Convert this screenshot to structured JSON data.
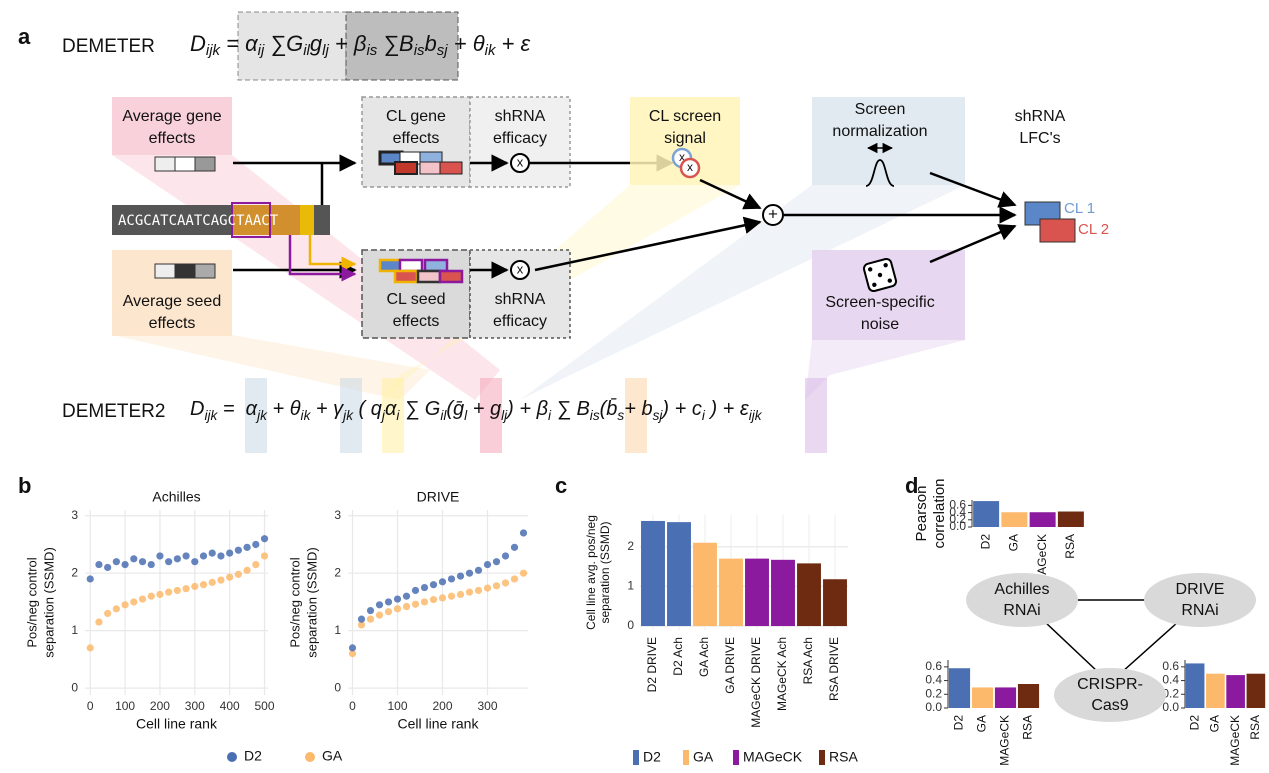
{
  "panel_labels": [
    "a",
    "b",
    "c",
    "d"
  ],
  "panel_a": {
    "demeter": {
      "name": "DEMETER",
      "formula": [
        [
          "D",
          "ijk"
        ],
        " = ",
        [
          "α",
          "ij"
        ],
        " ∑",
        [
          "G",
          "il"
        ],
        [
          "g",
          "lj"
        ],
        " + ",
        [
          "β",
          "is"
        ],
        " ∑",
        [
          "B",
          "is"
        ],
        [
          "b",
          "sj"
        ],
        " + ",
        [
          "θ",
          "ik"
        ],
        " + ε"
      ]
    },
    "demeter2": {
      "name": "DEMETER2",
      "formula": [
        [
          "D",
          "ijk"
        ],
        " =  ",
        [
          "α",
          "jk"
        ],
        " + ",
        [
          "θ",
          "ik"
        ],
        " + ",
        [
          "γ",
          "jk"
        ],
        " ( ",
        [
          "q",
          "j"
        ],
        [
          "α",
          "i"
        ],
        " ∑ ",
        [
          "G",
          "il"
        ],
        "(",
        [
          "ḡ",
          "l"
        ],
        " + ",
        [
          "g",
          "lj"
        ],
        ") + ",
        [
          "β",
          "i"
        ],
        " ∑ ",
        [
          "B",
          "is"
        ],
        "(",
        [
          "b̄",
          "s"
        ],
        "+ ",
        [
          "b",
          "sj"
        ],
        ") + ",
        [
          "c",
          "i"
        ],
        " ) + ",
        [
          "ε",
          "ijk"
        ]
      ]
    },
    "average_gene_effects": [
      "Average gene",
      "effects"
    ],
    "average_seed_effects": [
      "Average seed",
      "effects"
    ],
    "sequence": [
      "ACGCATCAAT",
      "CAGCTAACT"
    ],
    "cl_gene_effects": [
      "CL gene",
      "effects"
    ],
    "cl_seed_effects": [
      "CL seed",
      "effects"
    ],
    "shrna_efficacy_top": [
      "shRNA",
      "efficacy"
    ],
    "shrna_efficacy_bottom": [
      "shRNA",
      "efficacy"
    ],
    "multiply": [
      "x",
      "x"
    ],
    "cl_screen_signal": [
      "CL screen",
      "signal"
    ],
    "signal_marks": [
      "x",
      "x"
    ],
    "plus": "+",
    "screen_normalization": [
      "Screen",
      "normalization"
    ],
    "screen_specific_noise": [
      "Screen-specific",
      "noise"
    ],
    "shrna_lfcs": [
      "shRNA",
      "LFC's"
    ],
    "cl1": "CL 1",
    "cl2": "CL 2"
  },
  "chart_data": [
    {
      "type": "scatter",
      "title": "Achilles",
      "xlabel": "Cell line rank",
      "ylabel": [
        "Pos/neg control",
        "separation (SSMD)"
      ],
      "xlim": [
        -15,
        510
      ],
      "ylim": [
        -0.12,
        3.1
      ],
      "xticks": [
        0,
        100,
        200,
        300,
        400,
        500
      ],
      "yticks": [
        0,
        1,
        2,
        3
      ],
      "grid": true,
      "x": [
        0,
        25,
        50,
        75,
        100,
        125,
        150,
        175,
        200,
        225,
        250,
        275,
        300,
        325,
        350,
        375,
        400,
        425,
        450,
        475,
        500
      ],
      "series": [
        {
          "name": "D2",
          "color": "#4a6fb3",
          "values": [
            1.9,
            2.15,
            2.1,
            2.2,
            2.15,
            2.25,
            2.2,
            2.15,
            2.3,
            2.2,
            2.25,
            2.3,
            2.2,
            2.3,
            2.35,
            2.3,
            2.35,
            2.4,
            2.45,
            2.5,
            2.6
          ]
        },
        {
          "name": "GA",
          "color": "#fcb96b",
          "values": [
            0.7,
            1.15,
            1.3,
            1.38,
            1.45,
            1.5,
            1.55,
            1.6,
            1.63,
            1.67,
            1.7,
            1.73,
            1.77,
            1.8,
            1.84,
            1.88,
            1.93,
            1.98,
            2.05,
            2.15,
            2.3
          ]
        }
      ]
    },
    {
      "type": "scatter",
      "title": "DRIVE",
      "xlabel": "Cell line rank",
      "ylabel": [
        "Pos/neg control",
        "separation (SSMD)"
      ],
      "xlim": [
        -10,
        390
      ],
      "ylim": [
        -0.12,
        3.1
      ],
      "xticks": [
        0,
        100,
        200,
        300
      ],
      "yticks": [
        0,
        1,
        2,
        3
      ],
      "grid": true,
      "x": [
        0,
        20,
        40,
        60,
        80,
        100,
        120,
        140,
        160,
        180,
        200,
        220,
        240,
        260,
        280,
        300,
        320,
        340,
        360,
        380
      ],
      "series": [
        {
          "color": "#4a6fb3",
          "values": [
            0.7,
            1.2,
            1.35,
            1.45,
            1.5,
            1.55,
            1.6,
            1.7,
            1.75,
            1.8,
            1.85,
            1.9,
            1.95,
            2.0,
            2.05,
            2.15,
            2.2,
            2.3,
            2.45,
            2.7
          ]
        },
        {
          "color": "#fcb96b",
          "values": [
            0.6,
            1.1,
            1.2,
            1.27,
            1.33,
            1.38,
            1.42,
            1.46,
            1.5,
            1.54,
            1.57,
            1.6,
            1.63,
            1.67,
            1.7,
            1.74,
            1.78,
            1.83,
            1.9,
            2.0
          ]
        }
      ]
    },
    {
      "type": "bar",
      "ylabel": [
        "Cell line avg. pos/neg",
        "separation (SSMD)"
      ],
      "ylim": [
        -0.1,
        2.8
      ],
      "yticks": [
        0,
        1,
        2
      ],
      "grid": true,
      "categories": [
        "D2 DRIVE",
        "D2 Ach",
        "GA Ach",
        "GA DRIVE",
        "MAGeCK DRIVE",
        "MAGeCK Ach",
        "RSA Ach",
        "RSA DRIVE"
      ],
      "values": [
        2.65,
        2.62,
        2.1,
        1.7,
        1.7,
        1.67,
        1.58,
        1.18
      ],
      "colors": [
        "#4a6fb3",
        "#4a6fb3",
        "#fcb96b",
        "#fcb96b",
        "#8b1a9e",
        "#8b1a9e",
        "#6e2b12",
        "#6e2b12"
      ],
      "legend": [
        {
          "name": "D2",
          "color": "#4a6fb3"
        },
        {
          "name": "GA",
          "color": "#fcb96b"
        },
        {
          "name": "MAGeCK",
          "color": "#8b1a9e"
        },
        {
          "name": "RSA",
          "color": "#6e2b12"
        }
      ]
    },
    {
      "type": "bar",
      "ylabel": [
        "Pearson",
        "correlation"
      ],
      "ylim": [
        0,
        0.75
      ],
      "yticks": [
        {
          "value": 0,
          "label": "0.0"
        },
        0.2,
        0.4,
        0.6
      ],
      "grid": false,
      "categories": [
        "D2",
        "GA",
        "MAGeCK",
        "RSA"
      ],
      "values": [
        0.72,
        0.41,
        0.41,
        0.43
      ],
      "colors": [
        "#4a6fb3",
        "#fcb96b",
        "#8b1a9e",
        "#6e2b12"
      ]
    },
    {
      "type": "bar",
      "ylim": [
        0,
        0.7
      ],
      "yticks": [
        {
          "value": 0,
          "label": "0.0"
        },
        0.2,
        0.4,
        0.6
      ],
      "grid": false,
      "categories": [
        "D2",
        "GA",
        "MAGeCK",
        "RSA"
      ],
      "values": [
        0.58,
        0.3,
        0.3,
        0.35
      ],
      "colors": [
        "#4a6fb3",
        "#fcb96b",
        "#8b1a9e",
        "#6e2b12"
      ]
    },
    {
      "type": "bar",
      "ylim": [
        0,
        0.7
      ],
      "yticks": [
        {
          "value": 0,
          "label": "0.0"
        },
        0.2,
        0.4,
        0.6
      ],
      "grid": false,
      "categories": [
        "D2",
        "GA",
        "MAGeCK",
        "RSA"
      ],
      "values": [
        0.65,
        0.5,
        0.48,
        0.5
      ],
      "colors": [
        "#4a6fb3",
        "#fcb96b",
        "#8b1a9e",
        "#6e2b12"
      ]
    }
  ],
  "panel_d": {
    "nodes": [
      [
        "Achilles",
        "RNAi"
      ],
      [
        "DRIVE",
        "RNAi"
      ],
      [
        "CRISPR-",
        "Cas9"
      ]
    ]
  }
}
